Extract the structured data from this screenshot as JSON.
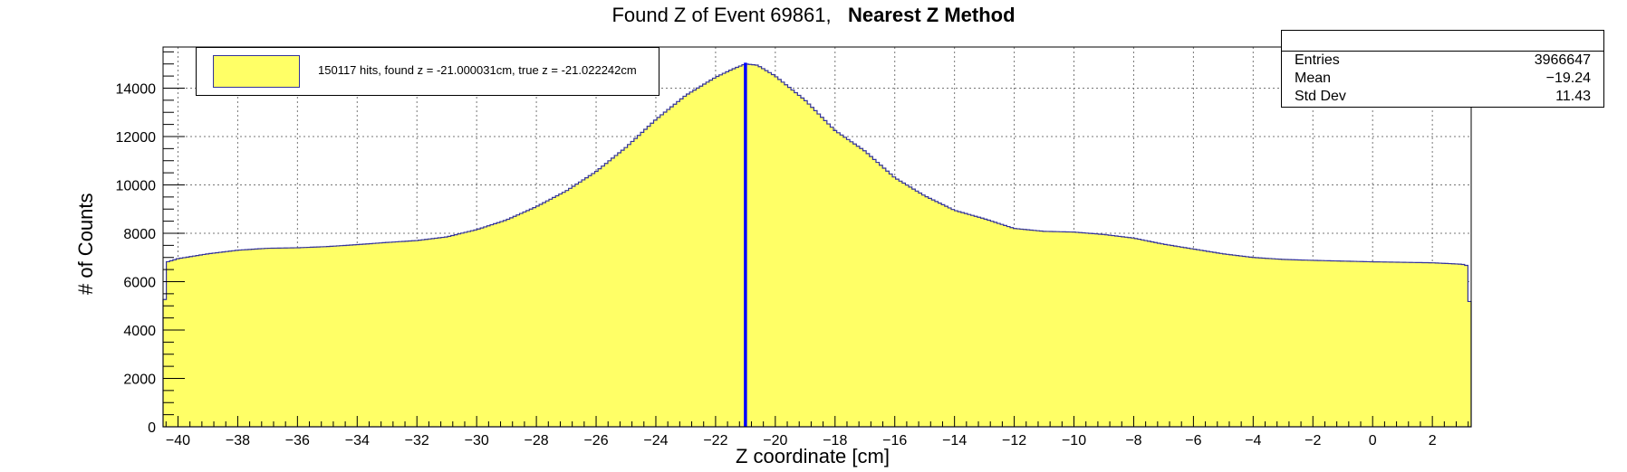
{
  "chart_data": {
    "type": "area",
    "title": "Found Z of Event 69861,",
    "title_bold": "Nearest Z Method",
    "xlabel": "Z coordinate [cm]",
    "ylabel": "# of Counts",
    "xlim": [
      -40.5,
      3.3
    ],
    "ylim": [
      0,
      15700
    ],
    "x_ticks": [
      -40,
      -38,
      -36,
      -34,
      -32,
      -30,
      -28,
      -26,
      -24,
      -22,
      -20,
      -18,
      -16,
      -14,
      -12,
      -10,
      -8,
      -6,
      -4,
      -2,
      0,
      2
    ],
    "x_tick_labels": [
      "−40",
      "−38",
      "−36",
      "−34",
      "−32",
      "−30",
      "−28",
      "−26",
      "−24",
      "−22",
      "−20",
      "−18",
      "−16",
      "−14",
      "−12",
      "−10",
      "−8",
      "−6",
      "−4",
      "−2",
      "0",
      "2"
    ],
    "y_ticks": [
      0,
      2000,
      4000,
      6000,
      8000,
      10000,
      12000,
      14000
    ],
    "y_tick_labels": [
      "0",
      "2000",
      "4000",
      "6000",
      "8000",
      "10000",
      "12000",
      "14000"
    ],
    "grid": true,
    "fill_color": "#ffff66",
    "line_color": "#333399",
    "marker_color": "#0000ff",
    "marker_x": -21.0,
    "series": [
      {
        "x": [
          -40.5,
          -40.4,
          -40,
          -39,
          -38,
          -37,
          -36,
          -35,
          -34,
          -33,
          -32,
          -31,
          -30,
          -29,
          -28,
          -27,
          -26,
          -25,
          -24,
          -23,
          -22,
          -21.4,
          -21.0,
          -20.6,
          -20,
          -19,
          -18,
          -17,
          -16,
          -15,
          -14,
          -13,
          -12,
          -11,
          -10,
          -9,
          -8,
          -7,
          -6,
          -5,
          -4,
          -3,
          -2,
          -1,
          0,
          1,
          2,
          3.0,
          3.2,
          3.3
        ],
        "y": [
          3400,
          6800,
          6950,
          7150,
          7300,
          7380,
          7400,
          7450,
          7530,
          7620,
          7700,
          7850,
          8150,
          8550,
          9100,
          9750,
          10550,
          11550,
          12700,
          13700,
          14450,
          14800,
          15000,
          14950,
          14500,
          13500,
          12250,
          11400,
          10300,
          9550,
          8950,
          8600,
          8200,
          8080,
          8050,
          7950,
          7800,
          7550,
          7350,
          7150,
          7000,
          6920,
          6880,
          6850,
          6820,
          6800,
          6780,
          6720,
          6650,
          3400
        ]
      }
    ],
    "legend": "150117 hits, found z = -21.000031cm, true z = -21.022242cm",
    "legend_position": "top-left"
  },
  "stats": {
    "entries_label": "Entries",
    "entries_value": "3966647",
    "mean_label": "Mean",
    "mean_value": "−19.24",
    "std_label": "Std Dev",
    "std_value": "11.43"
  }
}
